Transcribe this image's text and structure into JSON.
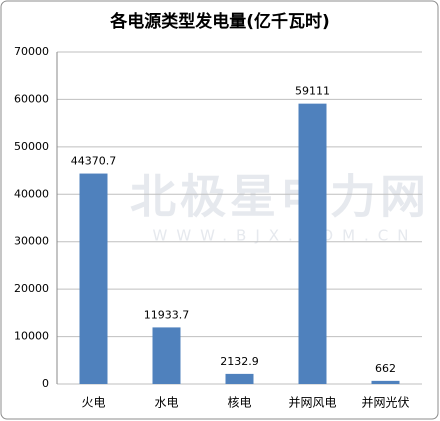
{
  "chart_data": {
    "type": "bar",
    "title": "各电源类型发电量(亿千瓦时)",
    "categories": [
      "火电",
      "水电",
      "核电",
      "并网风电",
      "并网光伏"
    ],
    "values": [
      44370.7,
      11933.7,
      2132.9,
      59111,
      662
    ],
    "color": "#4f81bd",
    "ylim": [
      0,
      70000
    ],
    "yticks": [
      0,
      10000,
      20000,
      30000,
      40000,
      50000,
      60000,
      70000
    ],
    "grid": true,
    "watermark": "北极星电力网",
    "watermark_url": "WWW.BJX.COM.CN"
  }
}
